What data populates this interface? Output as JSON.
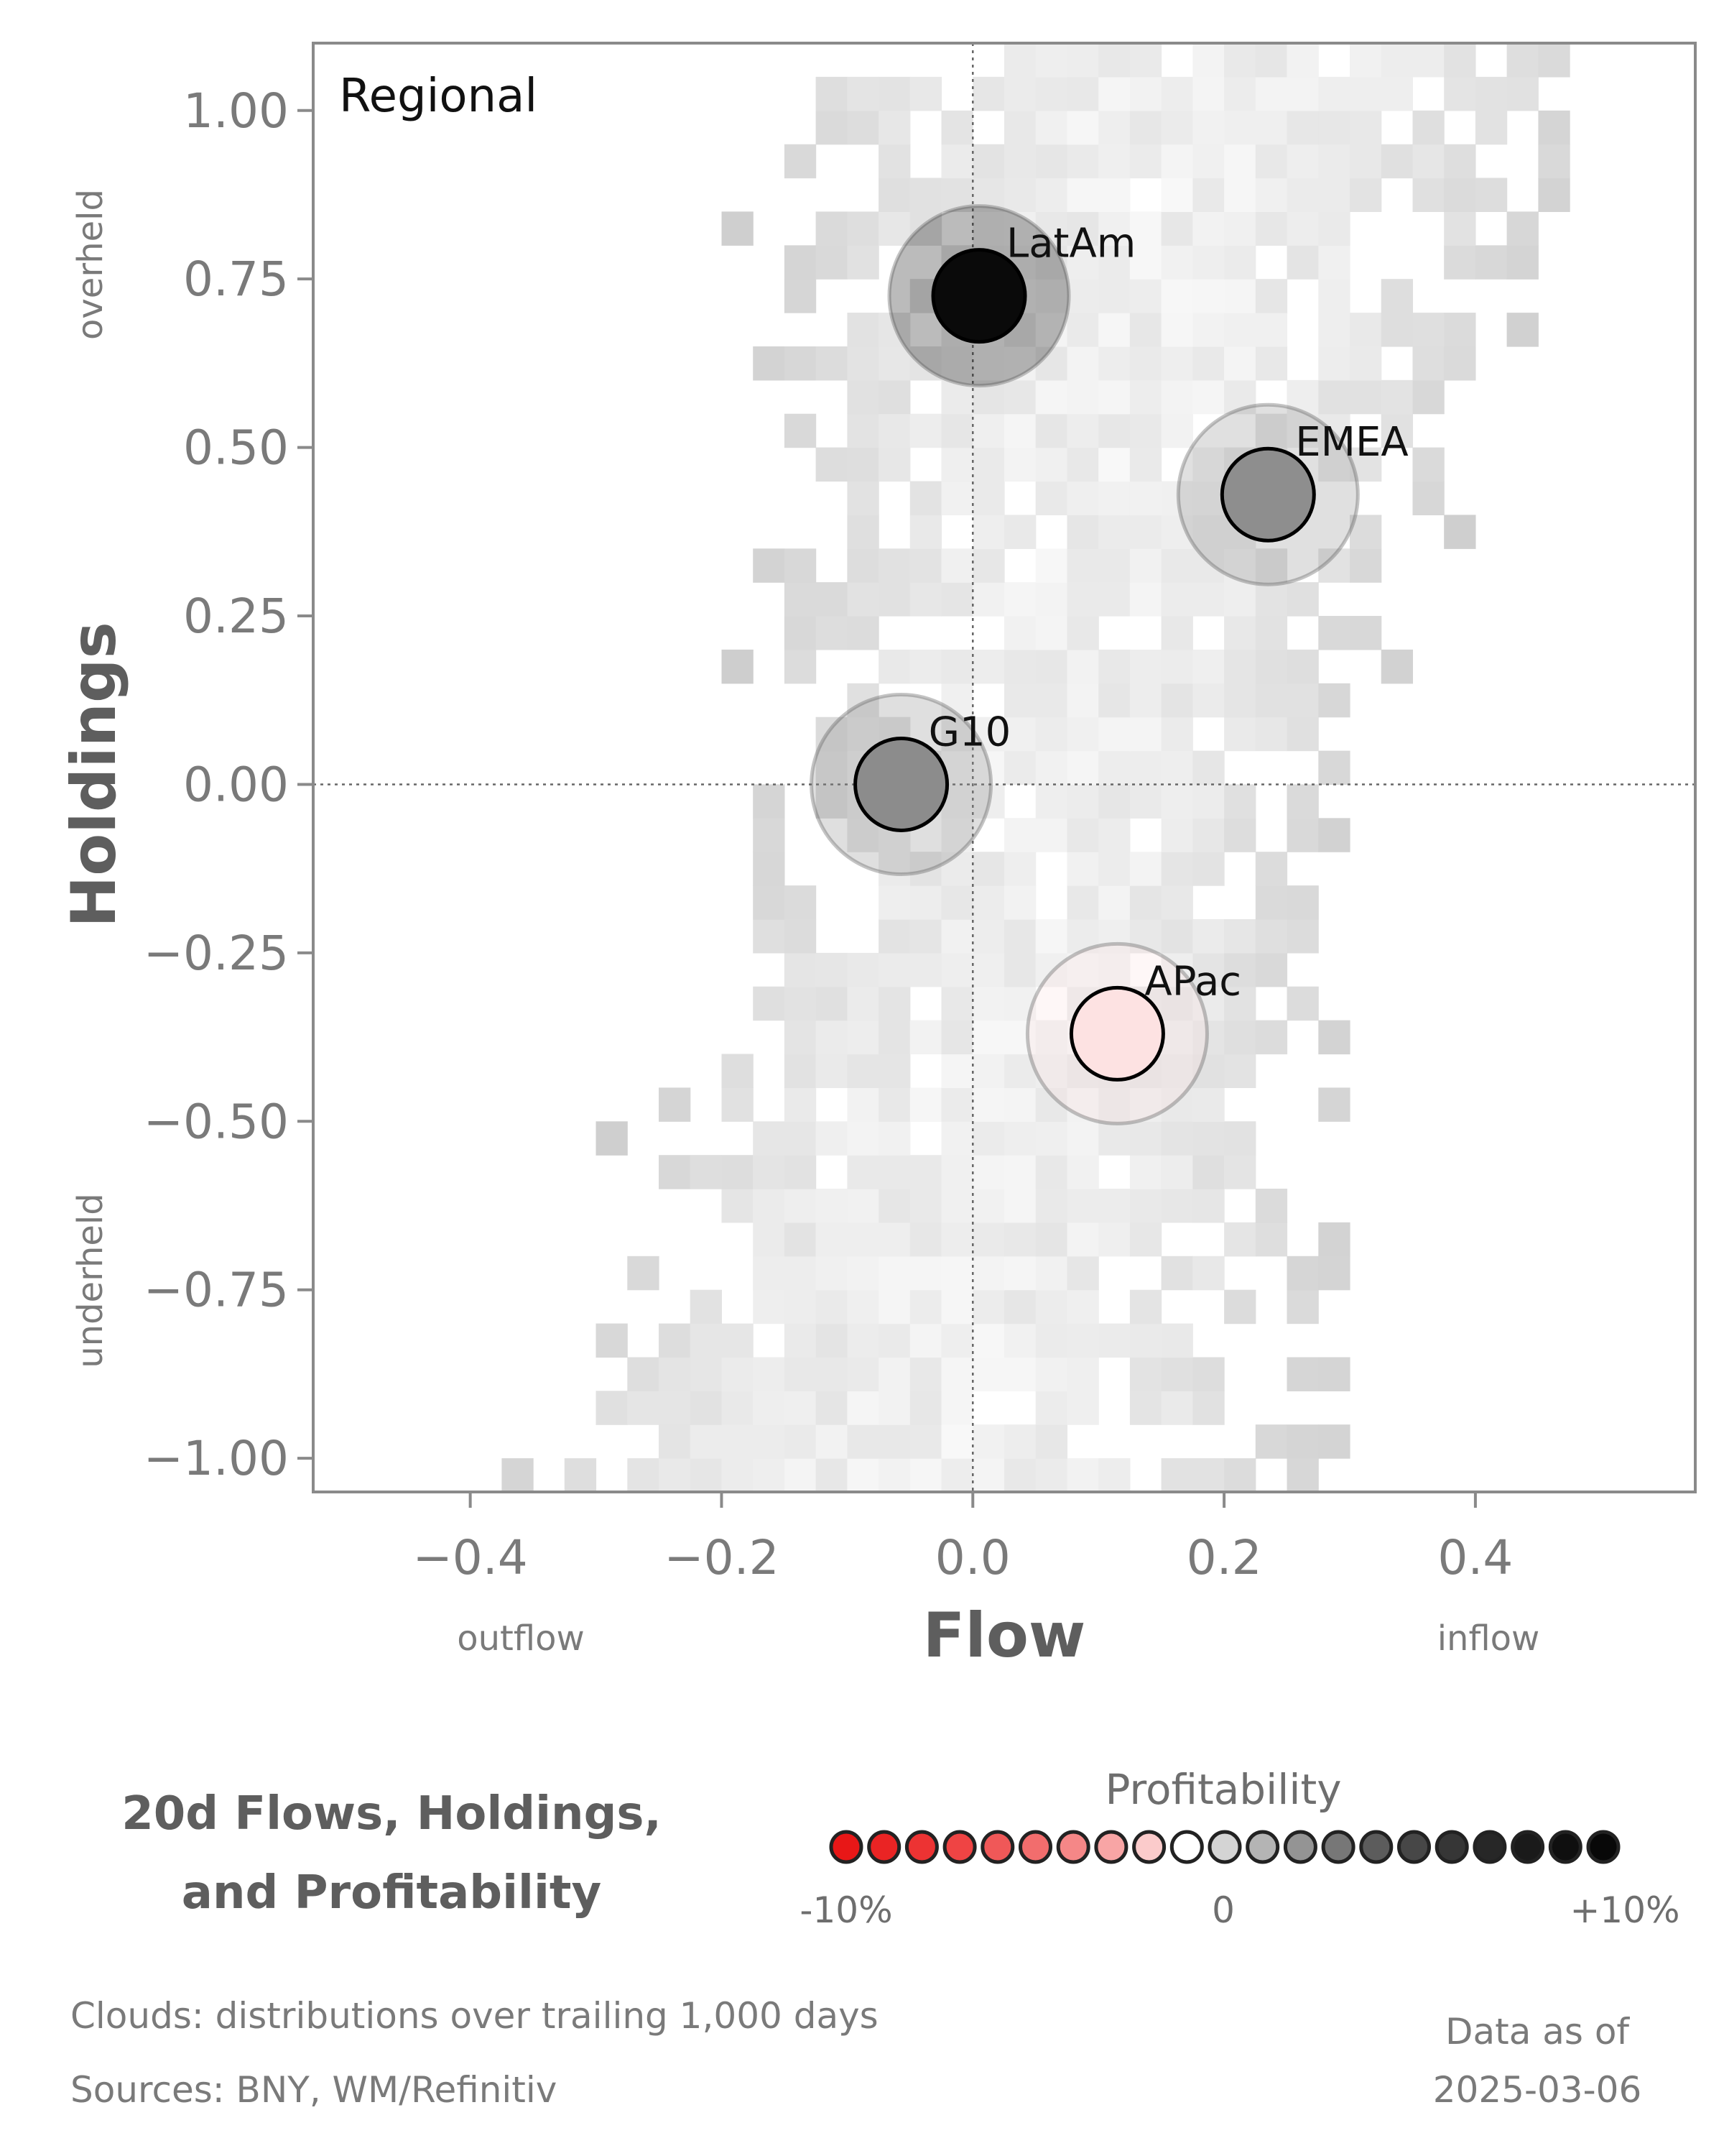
{
  "chart_data": {
    "type": "scatter",
    "panel_label": "Regional",
    "xlabel": "Flow",
    "ylabel": "Holdings",
    "x_low_label": "outflow",
    "x_high_label": "inflow",
    "y_low_label": "underheld",
    "y_high_label": "overheld",
    "xlim": [
      -0.525,
      0.575
    ],
    "ylim": [
      -1.05,
      1.1
    ],
    "x_ticks": [
      -0.4,
      -0.2,
      0.0,
      0.2,
      0.4
    ],
    "x_tick_labels": [
      "−0.4",
      "−0.2",
      "0.0",
      "0.2",
      "0.4"
    ],
    "y_ticks": [
      1.0,
      0.75,
      0.5,
      0.25,
      0.0,
      -0.25,
      -0.5,
      -0.75,
      -1.0
    ],
    "y_tick_labels": [
      "1.00",
      "0.75",
      "0.50",
      "0.25",
      "0.00",
      "−0.25",
      "−0.50",
      "−0.75",
      "−1.00"
    ],
    "reference_lines": {
      "x": 0.0,
      "y": 0.0
    },
    "background": "heatmap of historical distributions (clouds)",
    "points": [
      {
        "label": "LatAm",
        "x": 0.005,
        "y": 0.725,
        "profitability": 10,
        "color": "#0a0a0a"
      },
      {
        "label": "EMEA",
        "x": 0.235,
        "y": 0.43,
        "profitability": 4,
        "color": "#8e8e8e"
      },
      {
        "label": "G10",
        "x": -0.057,
        "y": 0.0,
        "profitability": 3,
        "color": "#8c8c8c"
      },
      {
        "label": "APac",
        "x": 0.115,
        "y": -0.37,
        "profitability": -1,
        "color": "#fde2e2"
      }
    ]
  },
  "legend": {
    "title": "Profitability",
    "tick_labels": [
      "-10%",
      "0",
      "+10%"
    ],
    "colors": [
      "#e81717",
      "#ea2424",
      "#ed3333",
      "#ef4444",
      "#f05858",
      "#f26d6d",
      "#f58787",
      "#f8a5a5",
      "#fbcbcb",
      "#ffffff",
      "#d4d4d4",
      "#b4b4b4",
      "#949494",
      "#777777",
      "#5c5c5c",
      "#474747",
      "#363636",
      "#272727",
      "#1a1a1a",
      "#0f0f0f",
      "#080808"
    ]
  },
  "footer": {
    "title_line1": "20d Flows, Holdings,",
    "title_line2": "and Profitability",
    "note1": "Clouds:  distributions over trailing 1,000 days",
    "note2": "Sources:  BNY, WM/Refinitiv",
    "asof_line1": "Data as of",
    "asof_line2": "2025-03-06"
  }
}
